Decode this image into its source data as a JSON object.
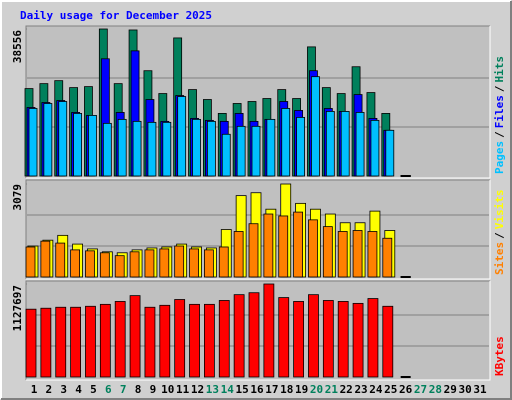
{
  "chart_data": {
    "type": "bar",
    "title": "Daily usage for December 2025",
    "categories": [
      1,
      2,
      3,
      4,
      5,
      6,
      7,
      8,
      9,
      10,
      11,
      12,
      13,
      14,
      15,
      16,
      17,
      18,
      19,
      20,
      21,
      22,
      23,
      24,
      25,
      26,
      27,
      28,
      29,
      30,
      31
    ],
    "weekends": [
      6,
      7,
      13,
      14,
      20,
      21,
      27,
      28
    ],
    "weekend_color": "#00805c",
    "separator": "/",
    "panels": [
      {
        "ylim": [
          0,
          38556
        ],
        "yticks": [
          38556
        ],
        "series": [
          {
            "name": "Hits",
            "color": "#00805c",
            "values": [
              22925,
              24228,
              25009,
              23186,
              23446,
              38556,
              24228,
              38300,
              27615,
              21623,
              36212,
              22665,
              20060,
              16413,
              19018,
              19539,
              20320,
              22665,
              20320,
              33867,
              23186,
              21623,
              28657,
              21883,
              16413,
              0,
              null,
              null,
              null,
              null,
              null
            ]
          },
          {
            "name": "Files",
            "color": "#0000ff",
            "values": [
              17976,
              19279,
              19800,
              16673,
              15892,
              30741,
              16673,
              32825,
              20060,
              14328,
              21102,
              15110,
              14589,
              14328,
              16413,
              14328,
              14850,
              19539,
              17194,
              27615,
              17715,
              16934,
              21362,
              15110,
              11984,
              0,
              null,
              null,
              null,
              null,
              null
            ]
          },
          {
            "name": "Pages",
            "color": "#00c0ff",
            "values": [
              17715,
              19018,
              19539,
              16413,
              15892,
              13807,
              14850,
              14328,
              14068,
              14068,
              20841,
              14850,
              14328,
              10942,
              13026,
              13026,
              14850,
              17715,
              15371,
              26051,
              16934,
              16934,
              16673,
              14589,
              11984,
              0,
              null,
              null,
              null,
              null,
              null
            ]
          }
        ]
      },
      {
        "ylim": [
          0,
          3079
        ],
        "yticks": [
          3079
        ],
        "series": [
          {
            "name": "Visits",
            "color": "#ffff00",
            "values": [
              1026,
              1219,
              1379,
              1090,
              930,
              834,
              802,
              898,
              962,
              994,
              1090,
              994,
              962,
              1572,
              2694,
              2790,
              2245,
              3079,
              2438,
              2245,
              2085,
              1796,
              1796,
              2181,
              1540,
              0,
              null,
              null,
              null,
              null,
              null
            ]
          },
          {
            "name": "Sites",
            "color": "#ff8000",
            "values": [
              994,
              1187,
              1123,
              898,
              866,
              802,
              706,
              834,
              898,
              930,
              1026,
              930,
              898,
              994,
              1507,
              1764,
              2085,
              2021,
              2149,
              1892,
              1668,
              1507,
              1540,
              1507,
              1283,
              0,
              null,
              null,
              null,
              null,
              null
            ]
          }
        ]
      },
      {
        "ylim": [
          0,
          1127697
        ],
        "yticks": [
          1127697
        ],
        "series": [
          {
            "name": "KBytes",
            "color": "#ff0000",
            "values": [
              822279,
              834005,
              845773,
              845773,
              857520,
              881013,
              916254,
              986735,
              845773,
              869267,
              939748,
              881013,
              881013,
              928001,
              998482,
              1021975,
              1127697,
              963241,
              916254,
              998482,
              928001,
              916254,
              892760,
              951494,
              857520,
              0,
              null,
              null,
              null,
              null,
              null
            ]
          }
        ]
      }
    ]
  }
}
